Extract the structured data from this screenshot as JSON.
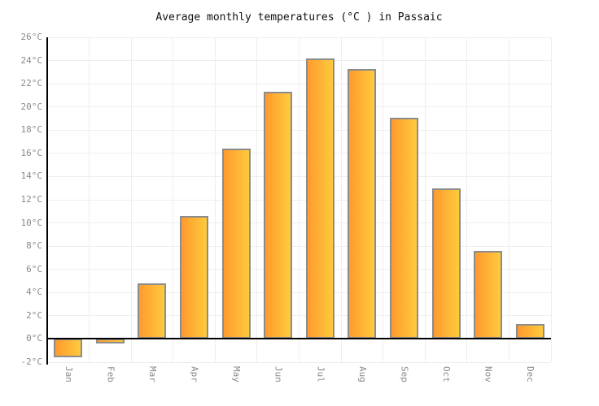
{
  "chart_data": {
    "type": "bar",
    "title": "Average monthly temperatures (°C ) in Passaic",
    "categories": [
      "Jan",
      "Feb",
      "Mar",
      "Apr",
      "May",
      "Jun",
      "Jul",
      "Aug",
      "Sep",
      "Oct",
      "Nov",
      "Dec"
    ],
    "values": [
      -1.6,
      -0.4,
      4.8,
      10.6,
      16.4,
      21.3,
      24.2,
      23.3,
      19.1,
      13.0,
      7.6,
      1.3
    ],
    "unit": "°C",
    "ylim": [
      -2,
      26
    ],
    "ytick_step": 2,
    "ytick_labels": [
      "26°C",
      "24°C",
      "22°C",
      "20°C",
      "18°C",
      "16°C",
      "14°C",
      "12°C",
      "10°C",
      "8°C",
      "6°C",
      "4°C",
      "2°C",
      "0°C",
      "-2°C"
    ],
    "grid": true,
    "legend": false,
    "colors": {
      "bar_gradient_left": "#ff9a2e",
      "bar_gradient_right": "#fecb3d",
      "bar_border": "#8c8c8c",
      "gridline": "#eeeeee",
      "axis": "#000000",
      "tick_label": "#8a8a8a",
      "title_color": "#111111"
    }
  }
}
